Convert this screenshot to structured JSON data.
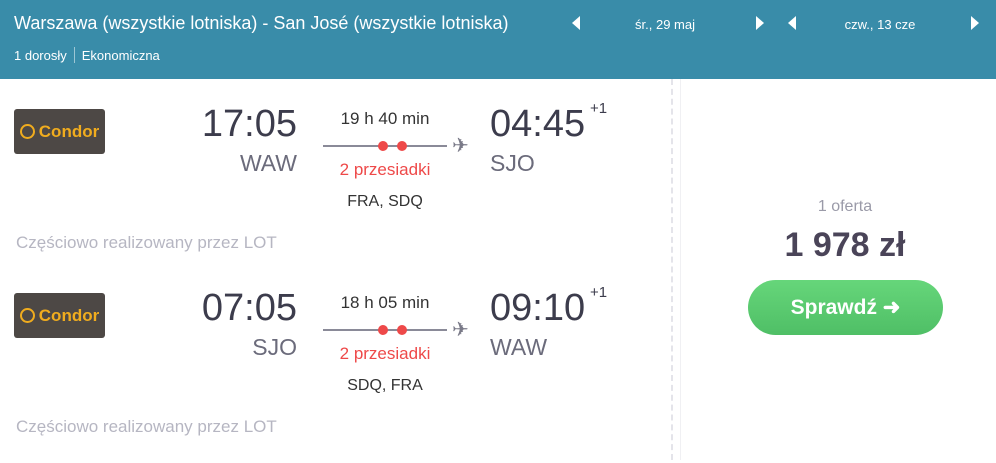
{
  "header": {
    "route": "Warszawa (wszystkie lotniska) - San José (wszystkie lotniska)",
    "passengers": "1 dorosły",
    "cabin": "Ekonomiczna",
    "outbound_date": "śr., 29 maj",
    "return_date": "czw., 13 cze"
  },
  "legs": [
    {
      "airline": "Condor",
      "dep_time": "17:05",
      "dep_airport": "WAW",
      "duration": "19 h 40 min",
      "stops": "2 przesiadki",
      "via": "FRA, SDQ",
      "arr_time": "04:45",
      "day_offset": "+1",
      "arr_airport": "SJO",
      "operated": "Częściowo realizowany przez LOT"
    },
    {
      "airline": "Condor",
      "dep_time": "07:05",
      "dep_airport": "SJO",
      "duration": "18 h 05 min",
      "stops": "2 przesiadki",
      "via": "SDQ, FRA",
      "arr_time": "09:10",
      "day_offset": "+1",
      "arr_airport": "WAW",
      "operated": "Częściowo realizowany przez LOT"
    }
  ],
  "price": {
    "offers": "1 oferta",
    "amount": "1 978 zł",
    "button": "Sprawdź ➜"
  },
  "colors": {
    "header": "#398ca9",
    "stops": "#ee4949",
    "button": "#5bcb70",
    "logo_bg": "#4d4845",
    "logo_text": "#f0ac1e"
  }
}
